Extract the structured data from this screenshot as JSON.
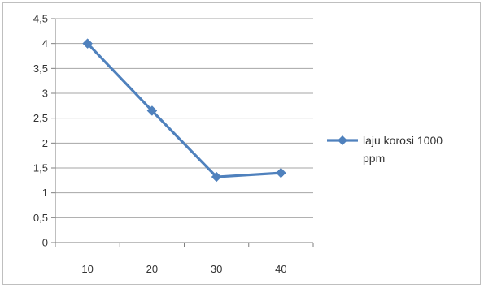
{
  "chart_data": {
    "type": "line",
    "title": "",
    "xlabel": "",
    "ylabel": "",
    "categories": [
      "10",
      "20",
      "30",
      "40"
    ],
    "series": [
      {
        "name": "laju korosi 1000 ppm",
        "values": [
          4.0,
          2.65,
          1.32,
          1.4
        ],
        "color": "#4f81bd",
        "marker": "diamond"
      }
    ],
    "ylim": [
      0,
      4.5
    ],
    "yticks": [
      "0",
      "0,5",
      "1",
      "1,5",
      "2",
      "2,5",
      "3",
      "3,5",
      "4",
      "4,5"
    ],
    "grid": true,
    "legend_position": "right",
    "legend_lines": [
      "laju korosi 1000",
      "ppm"
    ],
    "gridline_color": "#a6a6a6",
    "axis_color": "#7f7f7f"
  }
}
